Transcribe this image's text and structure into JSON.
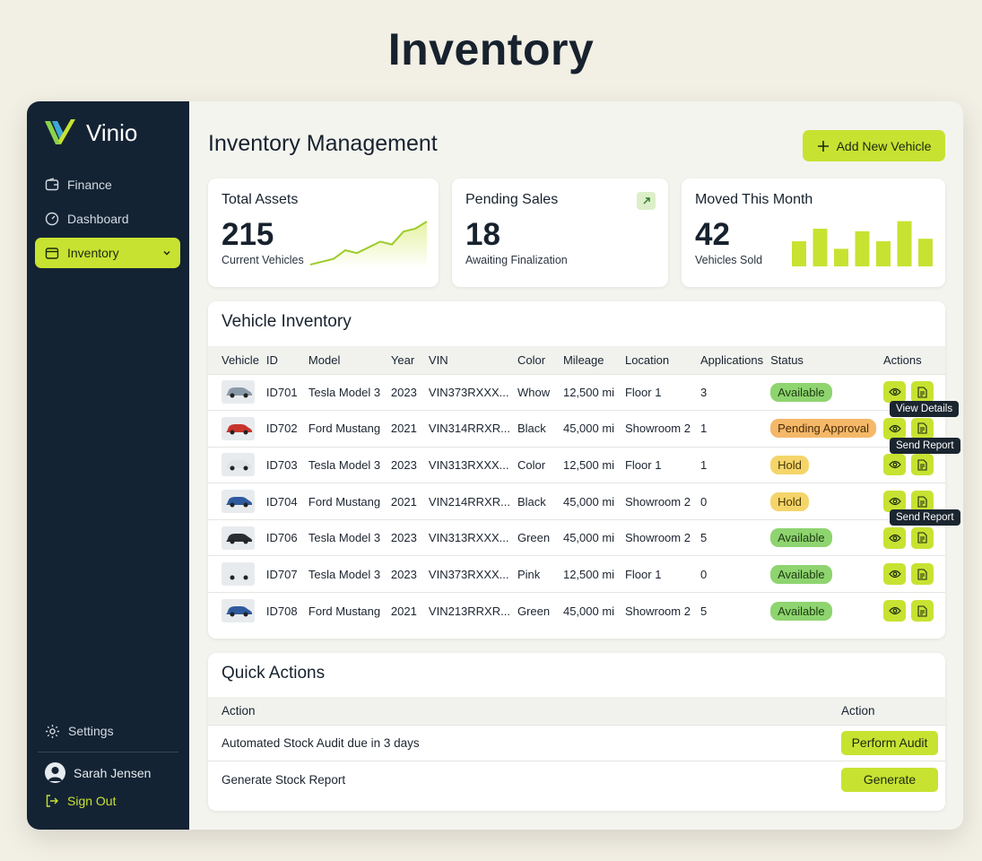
{
  "page_title": "Inventory",
  "sidebar": {
    "brand": "Vinio",
    "items": [
      {
        "label": "Finance",
        "icon": "wallet-icon"
      },
      {
        "label": "Dashboard",
        "icon": "gauge-icon"
      },
      {
        "label": "Inventory",
        "icon": "box-icon",
        "active": true
      }
    ],
    "settings_label": "Settings",
    "user_name": "Sarah Jensen",
    "signout_label": "Sign Out"
  },
  "header": {
    "title": "Inventory Management",
    "add_button": "Add New Vehicle"
  },
  "stats": [
    {
      "label": "Total Assets",
      "value": "215",
      "sub": "Current Vehicles"
    },
    {
      "label": "Pending Sales",
      "value": "18",
      "sub": "Awaiting Finalization"
    },
    {
      "label": "Moved This Month",
      "value": "42",
      "sub": "Vehicles Sold"
    }
  ],
  "sparkline": [
    10,
    14,
    18,
    30,
    26,
    34,
    42,
    38,
    56,
    60,
    70
  ],
  "moved_bars": [
    50,
    75,
    35,
    70,
    50,
    90,
    55
  ],
  "inventory": {
    "title": "Vehicle Inventory",
    "columns": [
      "Vehicle",
      "ID",
      "Model",
      "Year",
      "VIN",
      "Color",
      "Mileage",
      "Location",
      "Applications",
      "Status",
      "Actions"
    ],
    "rows": [
      {
        "id": "ID701",
        "model": "Tesla Model 3",
        "year": "2023",
        "vin": "VIN373RXXX...",
        "color": "Whow",
        "mileage": "12,500 mi",
        "location": "Floor 1",
        "applications": "3",
        "status": "Available",
        "car_color": "#8a99a8"
      },
      {
        "id": "ID702",
        "model": "Ford Mustang",
        "year": "2021",
        "vin": "VIN314RRXR...",
        "color": "Black",
        "mileage": "45,000 mi",
        "location": "Showroom 2",
        "applications": "1",
        "status": "Pending Approval",
        "car_color": "#c8342c"
      },
      {
        "id": "ID703",
        "model": "Tesla Model 3",
        "year": "2023",
        "vin": "VIN313RXXX...",
        "color": "Color",
        "mileage": "12,500 mi",
        "location": "Floor 1",
        "applications": "1",
        "status": "Hold",
        "car_color": "#dfe3e6"
      },
      {
        "id": "ID704",
        "model": "Ford Mustang",
        "year": "2021",
        "vin": "VIN214RRXR...",
        "color": "Black",
        "mileage": "45,000 mi",
        "location": "Showroom 2",
        "applications": "0",
        "status": "Hold",
        "car_color": "#2f5a9e"
      },
      {
        "id": "ID706",
        "model": "Tesla Model 3",
        "year": "2023",
        "vin": "VIN313RXXX...",
        "color": "Green",
        "mileage": "45,000 mi",
        "location": "Showroom 2",
        "applications": "5",
        "status": "Available",
        "car_color": "#2a2e33"
      },
      {
        "id": "ID707",
        "model": "Tesla Model 3",
        "year": "2023",
        "vin": "VIN373RXXX...",
        "color": "Pink",
        "mileage": "12,500 mi",
        "location": "Floor 1",
        "applications": "0",
        "status": "Available",
        "car_color": "#e7eaec"
      },
      {
        "id": "ID708",
        "model": "Ford Mustang",
        "year": "2021",
        "vin": "VIN213RRXR...",
        "color": "Green",
        "mileage": "45,000 mi",
        "location": "Showroom 2",
        "applications": "5",
        "status": "Available",
        "car_color": "#2f5a9e"
      }
    ],
    "tooltips": {
      "view": "View Details",
      "report": "Send Report"
    }
  },
  "quick_actions": {
    "title": "Quick Actions",
    "col_left": "Action",
    "col_right": "Action",
    "rows": [
      {
        "label": "Automated Stock Audit due in 3 days",
        "button": "Perform Audit"
      },
      {
        "label": "Generate Stock Report",
        "button": "Generate"
      }
    ]
  },
  "colors": {
    "accent": "#c8e232",
    "sidebar": "#142333",
    "available": "#8ed46f",
    "pending": "#f5b869",
    "hold": "#f5d56a"
  }
}
